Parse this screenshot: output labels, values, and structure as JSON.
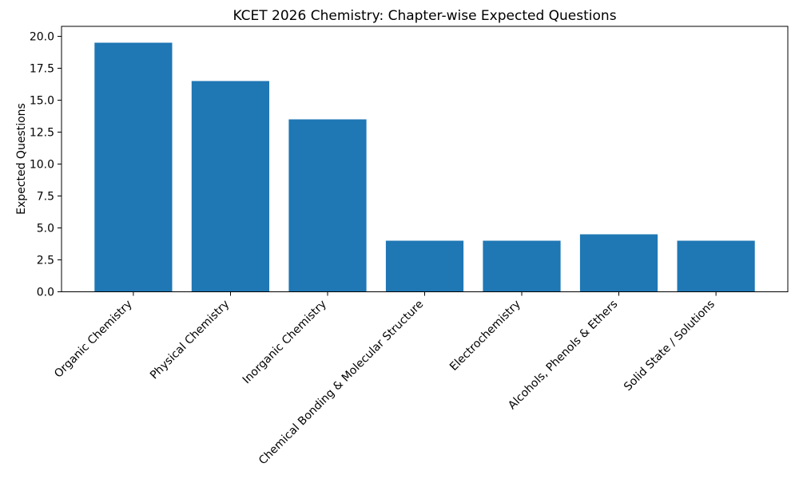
{
  "chart_data": {
    "type": "bar",
    "title": "KCET 2026 Chemistry: Chapter-wise Expected Questions",
    "categories": [
      "Organic Chemistry",
      "Physical Chemistry",
      "Inorganic Chemistry",
      "Chemical Bonding & Molecular Structure",
      "Electrochemistry",
      "Alcohols, Phenols & Ethers",
      "Solid State / Solutions"
    ],
    "values": [
      19.5,
      16.5,
      13.5,
      4,
      4,
      4.5,
      4
    ],
    "xlabel": "",
    "ylabel": "Expected Questions",
    "ylim": [
      0,
      20.78
    ],
    "yticks": [
      0,
      2.5,
      5,
      7.5,
      10,
      12.5,
      15,
      17.5,
      20
    ],
    "ytick_labels": [
      "0.0",
      "2.5",
      "5.0",
      "7.5",
      "10.0",
      "12.5",
      "15.0",
      "17.5",
      "20.0"
    ],
    "x_tick_label_rotation_deg": 45,
    "grid": false,
    "legend": null,
    "bar_color": "#1f77b4",
    "text_color": "#000000",
    "background": "#ffffff"
  }
}
